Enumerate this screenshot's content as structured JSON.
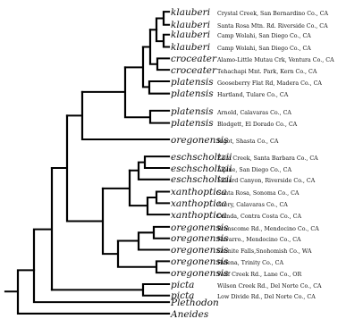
{
  "tips": [
    {
      "taxon": "klauberi",
      "locality": "Crystal Creek, San Bernardino Co., CA"
    },
    {
      "taxon": "klauberi",
      "locality": "Santa Rosa Mtn. Rd. Riverside Co., CA"
    },
    {
      "taxon": "klauberi",
      "locality": "Camp Wolahi, San Diego Co., CA"
    },
    {
      "taxon": "klauberi",
      "locality": "Camp Wolahi, San Diego Co., CA"
    },
    {
      "taxon": "croceater",
      "locality": "Alamo-Little Mutau Crk, Ventura Co., CA"
    },
    {
      "taxon": "croceater",
      "locality": "Tehachapi Mnt. Park, Kern Co., CA"
    },
    {
      "taxon": "platensis",
      "locality": "Gooseberry Flat Rd, Madera Co., CA"
    },
    {
      "taxon": "platensis",
      "locality": "Hartland, Tulare Co., CA"
    },
    {
      "taxon": "platensis",
      "locality": "Arnold, Calavaras Co., CA"
    },
    {
      "taxon": "platensis",
      "locality": "Blodgett, El Dorado Co., CA"
    },
    {
      "taxon": "oregonensis",
      "locality": "Ingot, Shasta Co., CA"
    },
    {
      "taxon": "eschscholtzii",
      "locality": "Zaca Creek, Santa Barbara Co., CA"
    },
    {
      "taxon": "eschscholtzii",
      "locality": "Alpine, San Diego Co., CA"
    },
    {
      "taxon": "eschscholtzii",
      "locality": "Millard Canyon, Riverside Co., CA"
    },
    {
      "taxon": "xanthoptica",
      "locality": "Santa Rosa, Sonoma Co., CA"
    },
    {
      "taxon": "xanthoptica",
      "locality": "Avery, Calavaras Co., CA"
    },
    {
      "taxon": "xanthoptica",
      "locality": "Orinda, Contra Costa Co., CA"
    },
    {
      "taxon": "oregonensis",
      "locality": "Branscome Rd., Mendocino Co., CA"
    },
    {
      "taxon": "oregonensis",
      "locality": "Navarro., Mendocino Co., CA"
    },
    {
      "taxon": "oregonensis",
      "locality": "Granite Falls,Snohomish Co., WA"
    },
    {
      "taxon": "oregonensis",
      "locality": "Helena, Trinity Co., CA"
    },
    {
      "taxon": "oregonensis",
      "locality": "Wolf Creek Rd., Lane Co., OR"
    },
    {
      "taxon": "picta",
      "locality": "Wilson Creek Rd., Del Norte Co., CA"
    },
    {
      "taxon": "picta",
      "locality": "Low Divide Rd., Del Norte Co., CA"
    },
    {
      "taxon": "Plethodon",
      "locality": ""
    },
    {
      "taxon": "Aneides",
      "locality": ""
    }
  ]
}
